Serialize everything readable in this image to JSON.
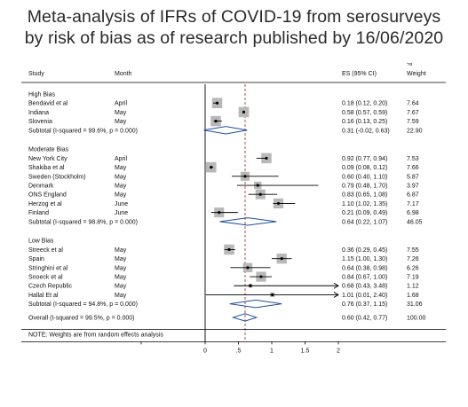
{
  "title_line1": "Meta-analysis of IFRs of COVID-19 from serosurveys",
  "title_line2": "by risk of bias as of research published by 16/06/2020",
  "colors": {
    "box": "#b8b8b8",
    "diamond": "#1f4e9e",
    "null_line": "#000000",
    "overall_line": "#b03a3a",
    "text": "#111111"
  },
  "chart_data": {
    "type": "forest",
    "headers": {
      "study": "Study",
      "month": "Month",
      "es": "ES (95% CI)",
      "weight_line1": "%",
      "weight_line2": "Weight"
    },
    "xlim": [
      0,
      2
    ],
    "null_value": 0,
    "overall_line_value": 0.6,
    "x_ticks": [
      {
        "value": 0,
        "label": "0"
      },
      {
        "value": 0.5,
        "label": ".5"
      },
      {
        "value": 1,
        "label": "1"
      },
      {
        "value": 1.5,
        "label": "1.5"
      },
      {
        "value": 2,
        "label": "2"
      }
    ],
    "groups": [
      {
        "label": "High Bias",
        "studies": [
          {
            "study": "Bendavid et al",
            "month": "April",
            "es": 0.18,
            "lo": 0.12,
            "hi": 0.2,
            "es_text": "0.18 (0.12, 0.20)",
            "weight": "7.64",
            "arrow": false
          },
          {
            "study": "Indiana",
            "month": "May",
            "es": 0.58,
            "lo": 0.57,
            "hi": 0.59,
            "es_text": "0.58 (0.57, 0.59)",
            "weight": "7.67",
            "arrow": false
          },
          {
            "study": "Slovenia",
            "month": "May",
            "es": 0.16,
            "lo": 0.13,
            "hi": 0.25,
            "es_text": "0.16 (0.13, 0.25)",
            "weight": "7.59",
            "arrow": false
          }
        ],
        "subtotal": {
          "label": "Subtotal  (I-squared = 99.6%, p = 0.000)",
          "es": 0.31,
          "lo": -0.02,
          "hi": 0.63,
          "es_text": "0.31 (-0.02, 0.63)",
          "weight": "22.90"
        }
      },
      {
        "label": "Moderate Bias",
        "studies": [
          {
            "study": "New York City",
            "month": "April",
            "es": 0.92,
            "lo": 0.77,
            "hi": 0.94,
            "es_text": "0.92 (0.77, 0.94)",
            "weight": "7.53",
            "arrow": false
          },
          {
            "study": "Shakiba et al",
            "month": "May",
            "es": 0.09,
            "lo": 0.08,
            "hi": 0.12,
            "es_text": "0.09 (0.08, 0.12)",
            "weight": "7.66",
            "arrow": false
          },
          {
            "study": "Sweden (Stockholm)",
            "month": "May",
            "es": 0.6,
            "lo": 0.4,
            "hi": 1.1,
            "es_text": "0.60 (0.40, 1.10)",
            "weight": "5.87",
            "arrow": false
          },
          {
            "study": "Denmark",
            "month": "May",
            "es": 0.79,
            "lo": 0.48,
            "hi": 1.7,
            "es_text": "0.79 (0.48, 1.70)",
            "weight": "3.97",
            "arrow": false
          },
          {
            "study": "ONS England",
            "month": "May",
            "es": 0.83,
            "lo": 0.65,
            "hi": 1.08,
            "es_text": "0.83 (0.65, 1.08)",
            "weight": "6.87",
            "arrow": false
          },
          {
            "study": "Herzog et al",
            "month": "June",
            "es": 1.1,
            "lo": 1.02,
            "hi": 1.35,
            "es_text": "1.10 (1.02, 1.35)",
            "weight": "7.17",
            "arrow": false
          },
          {
            "study": "Finland",
            "month": "June",
            "es": 0.21,
            "lo": 0.09,
            "hi": 0.49,
            "es_text": "0.21 (0.09, 0.49)",
            "weight": "6.98",
            "arrow": false
          }
        ],
        "subtotal": {
          "label": "Subtotal  (I-squared = 98.8%, p = 0.000)",
          "es": 0.64,
          "lo": 0.22,
          "hi": 1.07,
          "es_text": "0.64 (0.22, 1.07)",
          "weight": "46.05"
        }
      },
      {
        "label": "Low Bias",
        "studies": [
          {
            "study": "Streeck et al",
            "month": "May",
            "es": 0.36,
            "lo": 0.29,
            "hi": 0.45,
            "es_text": "0.36 (0.29, 0.45)",
            "weight": "7.55",
            "arrow": false
          },
          {
            "study": "Spain",
            "month": "May",
            "es": 1.15,
            "lo": 1.0,
            "hi": 1.3,
            "es_text": "1.15 (1.00, 1.30)",
            "weight": "7.26",
            "arrow": false
          },
          {
            "study": "Stringhini et al",
            "month": "May",
            "es": 0.64,
            "lo": 0.38,
            "hi": 0.98,
            "es_text": "0.64 (0.38, 0.98)",
            "weight": "6.26",
            "arrow": false
          },
          {
            "study": "Snoeck et al",
            "month": "May",
            "es": 0.84,
            "lo": 0.67,
            "hi": 1.0,
            "es_text": "0.84 (0.67, 1.00)",
            "weight": "7.19",
            "arrow": false
          },
          {
            "study": "Czech Republic",
            "month": "May",
            "es": 0.68,
            "lo": 0.43,
            "hi": 3.48,
            "es_text": "0.68 (0.43, 3.48)",
            "weight": "1.12",
            "arrow": true
          },
          {
            "study": "Hallal Et al",
            "month": "May",
            "es": 1.01,
            "lo": 0.01,
            "hi": 2.4,
            "es_text": "1.01 (0.01, 2.40)",
            "weight": "1.68",
            "arrow": true
          }
        ],
        "subtotal": {
          "label": "Subtotal  (I-squared = 94.8%, p = 0.000)",
          "es": 0.76,
          "lo": 0.37,
          "hi": 1.15,
          "es_text": "0.76 (0.37, 1.15)",
          "weight": "31.06"
        }
      }
    ],
    "overall": {
      "label": "Overall  (I-squared = 99.5%, p = 0.000)",
      "es": 0.6,
      "lo": 0.42,
      "hi": 0.77,
      "es_text": "0.60 (0.42, 0.77)",
      "weight": "100.00"
    },
    "note": "NOTE: Weights are from random effects analysis"
  }
}
